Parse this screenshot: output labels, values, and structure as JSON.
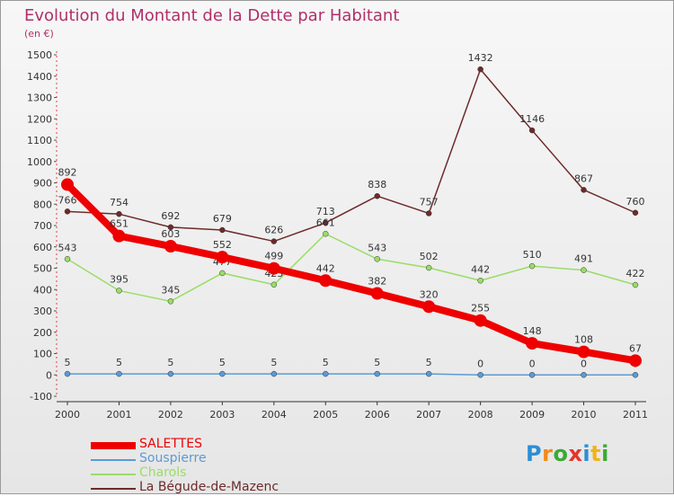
{
  "title": "Evolution du Montant de la Dette par Habitant",
  "subtitle": "(en €)",
  "brand": "Proxiti",
  "chart_data": {
    "type": "line",
    "x": [
      "2000",
      "2001",
      "2002",
      "2003",
      "2004",
      "2005",
      "2006",
      "2007",
      "2008",
      "2009",
      "2010",
      "2011"
    ],
    "ylim": [
      -100,
      1500
    ],
    "yticks": [
      -100,
      0,
      100,
      200,
      300,
      400,
      500,
      600,
      700,
      800,
      900,
      1000,
      1100,
      1200,
      1300,
      1400,
      1500
    ],
    "grid": false,
    "legend_position": "bottom-left",
    "series": [
      {
        "name": "SALETTES",
        "color": "#ee0000",
        "values": [
          892,
          651,
          603,
          552,
          499,
          442,
          382,
          320,
          255,
          148,
          108,
          67
        ]
      },
      {
        "name": "Souspierre",
        "color": "#5b9bd5",
        "values": [
          5,
          5,
          5,
          5,
          5,
          5,
          5,
          5,
          0,
          0,
          0,
          0
        ]
      },
      {
        "name": "Charols",
        "color": "#99dd66",
        "values": [
          543,
          395,
          345,
          477,
          423,
          661,
          543,
          502,
          442,
          510,
          491,
          422
        ]
      },
      {
        "name": "La Bégude-de-Mazenc",
        "color": "#6e2a2a",
        "values": [
          766,
          754,
          692,
          679,
          626,
          713,
          838,
          757,
          1432,
          1146,
          867,
          760
        ]
      }
    ]
  }
}
